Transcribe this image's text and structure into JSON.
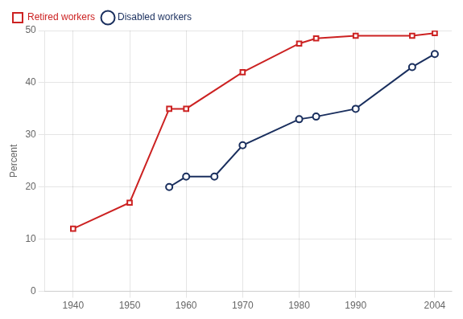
{
  "chart_data": {
    "type": "line",
    "y_label": "Percent",
    "series": [
      {
        "name": "Retired workers",
        "color": "#cc2222",
        "marker": "square",
        "x": [
          1940,
          1950,
          1957,
          1960,
          1970,
          1980,
          1983,
          1990,
          2000,
          2004
        ],
        "values": [
          12,
          17,
          35,
          35,
          42,
          47.5,
          48.5,
          49,
          49,
          49.5
        ]
      },
      {
        "name": "Disabled workers",
        "color": "#1a2f5e",
        "marker": "circle",
        "x": [
          1957,
          1960,
          1965,
          1970,
          1980,
          1983,
          1990,
          2000,
          2004
        ],
        "values": [
          20,
          22,
          22,
          28,
          33,
          33.5,
          35,
          43,
          45.5
        ]
      }
    ],
    "xlim": [
      1935,
      2007
    ],
    "xticks": [
      1940,
      1950,
      1960,
      1970,
      1980,
      1990,
      2004
    ],
    "ylim": [
      0,
      50
    ],
    "yticks": [
      0,
      10,
      20,
      30,
      40,
      50
    ],
    "grid": true,
    "legend": "top"
  }
}
